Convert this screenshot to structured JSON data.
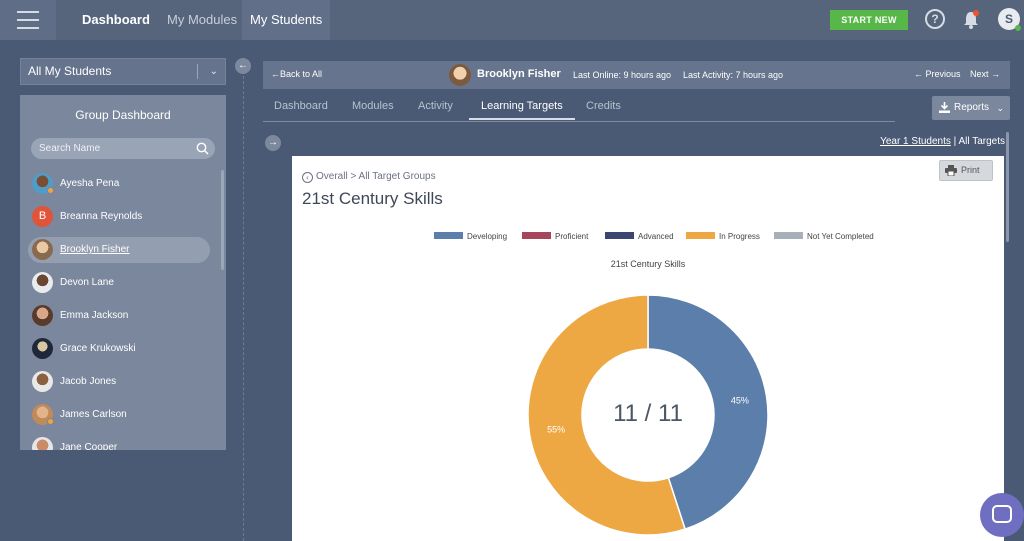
{
  "topbar": {
    "nav": {
      "dashboard": "Dashboard",
      "my_modules": "My Modules",
      "my_students": "My Students"
    },
    "start_new": "START NEW",
    "help": "?",
    "user_initial": "S"
  },
  "sidebar": {
    "dropdown_value": "All My Students",
    "panel_title": "Group Dashboard",
    "search_placeholder": "Search Name",
    "students": [
      {
        "name": "Ayesha Pena"
      },
      {
        "name": "Breanna Reynolds",
        "initial": "B"
      },
      {
        "name": "Brooklyn Fisher"
      },
      {
        "name": "Devon Lane"
      },
      {
        "name": "Emma Jackson"
      },
      {
        "name": "Grace Krukowski"
      },
      {
        "name": "Jacob Jones"
      },
      {
        "name": "James Carlson"
      },
      {
        "name": "Jane Cooper"
      }
    ]
  },
  "student_bar": {
    "back": "←Back to All",
    "name": "Brooklyn Fisher",
    "last_online": "Last Online: 9 hours ago",
    "last_activity": "Last Activity: 7 hours ago",
    "previous": "← Previous",
    "next": "Next →"
  },
  "tabs": [
    "Dashboard",
    "Modules",
    "Activity",
    "Learning Targets",
    "Credits"
  ],
  "reports_label": "Reports",
  "context": {
    "link": "Year 1 Students",
    "separator": " | ",
    "current": "All Targets"
  },
  "card": {
    "breadcrumb": "Overall > All Target Groups",
    "title": "21st Century Skills",
    "print": "Print"
  },
  "chart_data": {
    "type": "pie",
    "title": "21st Century Skills",
    "center_label": "11 / 11",
    "legend": [
      {
        "name": "Developing",
        "color": "#5b7faa"
      },
      {
        "name": "Proficient",
        "color": "#a6465c"
      },
      {
        "name": "Advanced",
        "color": "#3c4572"
      },
      {
        "name": "In Progress",
        "color": "#eda843"
      },
      {
        "name": "Not Yet Completed",
        "color": "#a7afb8"
      }
    ],
    "slices": [
      {
        "name": "Developing",
        "value": 45,
        "label": "45%",
        "color": "#5b7faa"
      },
      {
        "name": "In Progress",
        "value": 55,
        "label": "55%",
        "color": "#eda843"
      }
    ]
  }
}
